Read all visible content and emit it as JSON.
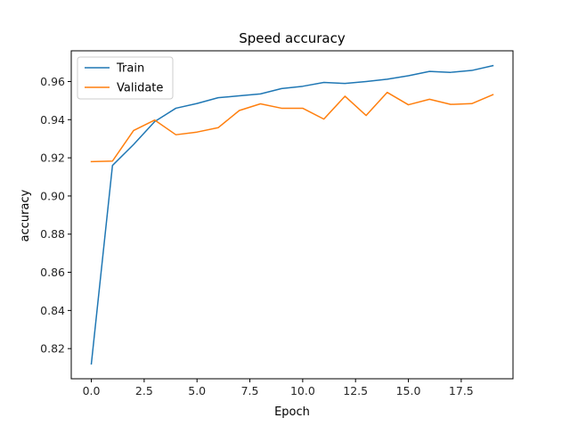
{
  "chart_data": {
    "type": "line",
    "title": "Speed accuracy",
    "xlabel": "Epoch",
    "ylabel": "accuracy",
    "x": [
      0,
      1,
      2,
      3,
      4,
      5,
      6,
      7,
      8,
      9,
      10,
      11,
      12,
      13,
      14,
      15,
      16,
      17,
      18,
      19
    ],
    "series": [
      {
        "name": "Train",
        "color": "#1f77b4",
        "values": [
          0.812,
          0.916,
          0.927,
          0.939,
          0.946,
          0.9485,
          0.9515,
          0.9525,
          0.9535,
          0.9563,
          0.9575,
          0.9595,
          0.959,
          0.96,
          0.9612,
          0.963,
          0.9653,
          0.9648,
          0.9658,
          0.9683
        ]
      },
      {
        "name": "Validate",
        "color": "#ff7f0e",
        "values": [
          0.918,
          0.9183,
          0.9343,
          0.9398,
          0.9321,
          0.9335,
          0.9358,
          0.9448,
          0.9483,
          0.946,
          0.946,
          0.9403,
          0.9523,
          0.9422,
          0.9543,
          0.9478,
          0.9507,
          0.948,
          0.9484,
          0.9531
        ]
      }
    ],
    "xlim": [
      -0.95,
      19.95
    ],
    "ylim": [
      0.8042,
      0.9761
    ],
    "xticks": [
      0.0,
      2.5,
      5.0,
      7.5,
      10.0,
      12.5,
      15.0,
      17.5
    ],
    "xtick_labels": [
      "0.0",
      "2.5",
      "5.0",
      "7.5",
      "10.0",
      "12.5",
      "15.0",
      "17.5"
    ],
    "yticks": [
      0.82,
      0.84,
      0.86,
      0.88,
      0.9,
      0.92,
      0.94,
      0.96
    ],
    "ytick_labels": [
      "0.82",
      "0.84",
      "0.86",
      "0.88",
      "0.90",
      "0.92",
      "0.94",
      "0.96"
    ],
    "legend_position": "upper-left",
    "grid": false
  }
}
